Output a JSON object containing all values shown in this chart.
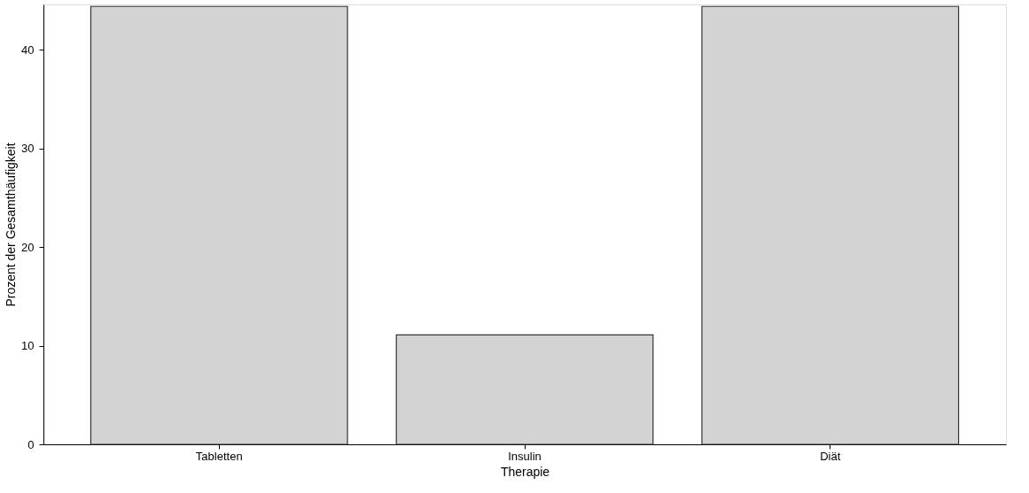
{
  "chart_data": {
    "type": "bar",
    "categories": [
      "Tabletten",
      "Insulin",
      "Diät"
    ],
    "values": [
      44.4,
      11.1,
      44.4
    ],
    "color": "#d3d3d3",
    "xlabel": "Therapie",
    "ylabel": "Prozent der Gesamthäufigkeit",
    "ylim": [
      0,
      44.6
    ],
    "yticks": [
      0,
      10,
      20,
      30,
      40
    ],
    "grid": false
  }
}
